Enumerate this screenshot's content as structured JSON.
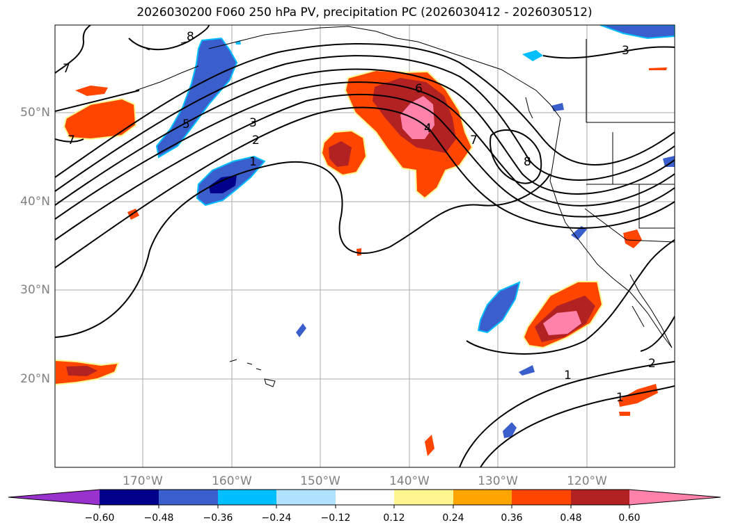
{
  "title": "2026030200 F060 250 hPa PV, precipitation PC (2026030412 - 2026030512)",
  "lat_labels": [
    "50°N",
    "40°N",
    "30°N",
    "20°N"
  ],
  "lon_labels": [
    "170°W",
    "160°W",
    "150°W",
    "140°W",
    "130°W",
    "120°W"
  ],
  "contour_labels": [
    "8",
    "7",
    "7",
    "5",
    "3",
    "2",
    "1",
    "6",
    "4",
    "7",
    "8",
    "3",
    "1",
    "2",
    "1"
  ],
  "colorbar": {
    "tick_labels": [
      "−0.60",
      "−0.48",
      "−0.36",
      "−0.24",
      "−0.12",
      "0.12",
      "0.24",
      "0.36",
      "0.48",
      "0.60"
    ],
    "colors": [
      "#9932cc",
      "#00008b",
      "#3a5fcd",
      "#00bfff",
      "#b0e2ff",
      "#ffffff",
      "#fff68f",
      "#ffa500",
      "#ff4500",
      "#b22222",
      "#ff82ab"
    ]
  },
  "colors": {
    "precip_pos_light": "#fff68f",
    "precip_pos_orange": "#ff4500",
    "precip_pos_red": "#b22222",
    "precip_pos_pink": "#ff82ab",
    "precip_neg_light": "#00bfff",
    "precip_neg_blue": "#3a5fcd",
    "precip_neg_navy": "#00008b",
    "contour": "#000000",
    "grid": "#aaaaaa"
  }
}
